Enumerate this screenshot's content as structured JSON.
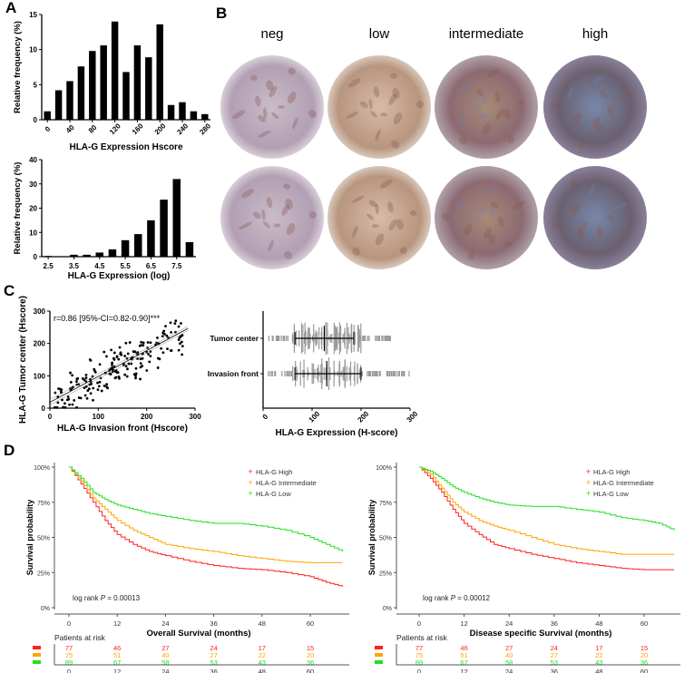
{
  "panel_labels": [
    "A",
    "B",
    "C",
    "D"
  ],
  "tissue": {
    "labels": [
      "neg",
      "low",
      "intermediate",
      "high"
    ],
    "colors": [
      "#b7a6b8",
      "#c2a390",
      "#9a7a6e",
      "#7f7890"
    ]
  },
  "chart_data": [
    {
      "id": "A1",
      "type": "bar",
      "xlabel": "HLA-G Expression Hscore",
      "ylabel": "Relative frequency (%)",
      "ylim": [
        0,
        15
      ],
      "yticks": [
        0,
        5,
        10,
        15
      ],
      "xticklabels": [
        "0",
        "40",
        "80",
        "120",
        "160",
        "200",
        "240",
        "280"
      ],
      "categories": [
        0,
        20,
        40,
        60,
        80,
        100,
        120,
        140,
        160,
        180,
        200,
        220,
        240,
        260,
        280
      ],
      "values": [
        1.2,
        4.2,
        5.5,
        7.6,
        9.8,
        10.6,
        14,
        6.8,
        10.6,
        8.9,
        13.6,
        2.1,
        2.5,
        1.2,
        0.8
      ]
    },
    {
      "id": "A2",
      "type": "bar",
      "xlabel": "HLA-G Expression (log)",
      "ylabel": "Relative frequency (%)",
      "ylim": [
        0,
        40
      ],
      "yticks": [
        0,
        10,
        20,
        30,
        40
      ],
      "xticklabels": [
        "2.5",
        "3.5",
        "4.5",
        "5.5",
        "6.5",
        "7.5"
      ],
      "categories": [
        2.5,
        3,
        3.5,
        4,
        4.5,
        5,
        5.5,
        6,
        6.5,
        7,
        7.5,
        8
      ],
      "values": [
        0.3,
        0,
        0.8,
        0.8,
        1.7,
        3,
        6.8,
        9.3,
        15,
        23.5,
        32,
        6
      ]
    },
    {
      "id": "C1",
      "type": "scatter",
      "xlabel": "HLA-G Invasion front (Hscore)",
      "ylabel": "HLA-G Tumor center (Hscore)",
      "xlim": [
        0,
        300
      ],
      "ylim": [
        0,
        300
      ],
      "xticks": [
        0,
        100,
        200,
        300
      ],
      "yticks": [
        0,
        100,
        200,
        300
      ],
      "annotation": "r=0.86 [95%-CI=0.82-0.90]***",
      "fit": {
        "slope": 0.8,
        "intercept": 18
      },
      "n_points": 190
    },
    {
      "id": "C2",
      "type": "scatter",
      "xlabel": "HLA-G Expression (H-score)",
      "xlim": [
        0,
        300
      ],
      "xticks": [
        "0",
        "100",
        "200",
        "300"
      ],
      "categories": [
        "Tumor center",
        "Invasion front"
      ],
      "summary": [
        {
          "q1": 65,
          "median": 125,
          "q3": 185
        },
        {
          "q1": 65,
          "median": 130,
          "q3": 200
        }
      ]
    },
    {
      "id": "D1",
      "type": "line",
      "xlabel": "Overall Survival (months)",
      "ylabel": "Survival probability",
      "xticks": [
        "0",
        "12",
        "24",
        "36",
        "48",
        "60"
      ],
      "yticks": [
        "0%",
        "25%",
        "50%",
        "75%",
        "100%"
      ],
      "xlim": [
        0,
        68
      ],
      "annotation_prefix": "log rank ",
      "annotation_p": "P",
      "annotation_value": " = 0.00013",
      "series": [
        {
          "name": "HLA-G High",
          "color": "#ff2020",
          "x": [
            0,
            3,
            6,
            9,
            12,
            16,
            20,
            24,
            30,
            36,
            42,
            48,
            54,
            60,
            64,
            68
          ],
          "y": [
            1,
            0.88,
            0.75,
            0.62,
            0.52,
            0.45,
            0.4,
            0.37,
            0.33,
            0.3,
            0.28,
            0.27,
            0.25,
            0.22,
            0.18,
            0.15
          ]
        },
        {
          "name": "HLA-G Intermediate",
          "color": "#ffa500",
          "x": [
            0,
            3,
            6,
            9,
            12,
            16,
            20,
            24,
            30,
            36,
            42,
            48,
            54,
            60,
            64,
            68
          ],
          "y": [
            1,
            0.9,
            0.78,
            0.7,
            0.62,
            0.55,
            0.5,
            0.45,
            0.42,
            0.4,
            0.37,
            0.35,
            0.33,
            0.32,
            0.32,
            0.32
          ]
        },
        {
          "name": "HLA-G Low",
          "color": "#20e020",
          "x": [
            0,
            3,
            6,
            9,
            12,
            16,
            20,
            24,
            30,
            36,
            42,
            48,
            54,
            60,
            64,
            68
          ],
          "y": [
            1,
            0.92,
            0.82,
            0.77,
            0.73,
            0.7,
            0.67,
            0.65,
            0.62,
            0.6,
            0.6,
            0.58,
            0.55,
            0.5,
            0.45,
            0.4
          ]
        }
      ],
      "risk_title": "Patients at risk",
      "risk": [
        [
          "77",
          "46",
          "27",
          "24",
          "17",
          "15"
        ],
        [
          "75",
          "51",
          "40",
          "27",
          "22",
          "20"
        ],
        [
          "89",
          "67",
          "58",
          "53",
          "43",
          "36"
        ]
      ]
    },
    {
      "id": "D2",
      "type": "line",
      "xlabel": "Disease specific Survival (months)",
      "ylabel": "Survival probability",
      "xticks": [
        "0",
        "12",
        "24",
        "36",
        "48",
        "60"
      ],
      "yticks": [
        "0%",
        "25%",
        "50%",
        "75%",
        "100%"
      ],
      "xlim": [
        0,
        68
      ],
      "annotation_prefix": "log rank ",
      "annotation_p": "P",
      "annotation_value": " = 0.00012",
      "series": [
        {
          "name": "HLA-G High",
          "color": "#ff2020",
          "x": [
            0,
            3,
            6,
            9,
            12,
            16,
            20,
            24,
            30,
            36,
            42,
            48,
            54,
            60,
            64,
            68
          ],
          "y": [
            1,
            0.92,
            0.82,
            0.7,
            0.6,
            0.52,
            0.45,
            0.42,
            0.38,
            0.35,
            0.32,
            0.3,
            0.28,
            0.27,
            0.27,
            0.27
          ]
        },
        {
          "name": "HLA-G Intermediate",
          "color": "#ffa500",
          "x": [
            0,
            3,
            6,
            9,
            12,
            16,
            20,
            24,
            30,
            36,
            42,
            48,
            54,
            60,
            64,
            68
          ],
          "y": [
            1,
            0.95,
            0.85,
            0.75,
            0.68,
            0.62,
            0.58,
            0.55,
            0.5,
            0.45,
            0.42,
            0.4,
            0.38,
            0.38,
            0.38,
            0.38
          ]
        },
        {
          "name": "HLA-G Low",
          "color": "#20e020",
          "x": [
            0,
            3,
            6,
            9,
            12,
            16,
            20,
            24,
            30,
            36,
            42,
            48,
            54,
            60,
            64,
            68
          ],
          "y": [
            1,
            0.97,
            0.92,
            0.86,
            0.82,
            0.78,
            0.75,
            0.73,
            0.72,
            0.72,
            0.7,
            0.68,
            0.64,
            0.62,
            0.6,
            0.55
          ]
        }
      ],
      "risk_title": "Patients at risk",
      "risk": [
        [
          "77",
          "46",
          "27",
          "24",
          "17",
          "15"
        ],
        [
          "75",
          "51",
          "40",
          "27",
          "22",
          "20"
        ],
        [
          "89",
          "67",
          "58",
          "53",
          "43",
          "36"
        ]
      ]
    }
  ]
}
